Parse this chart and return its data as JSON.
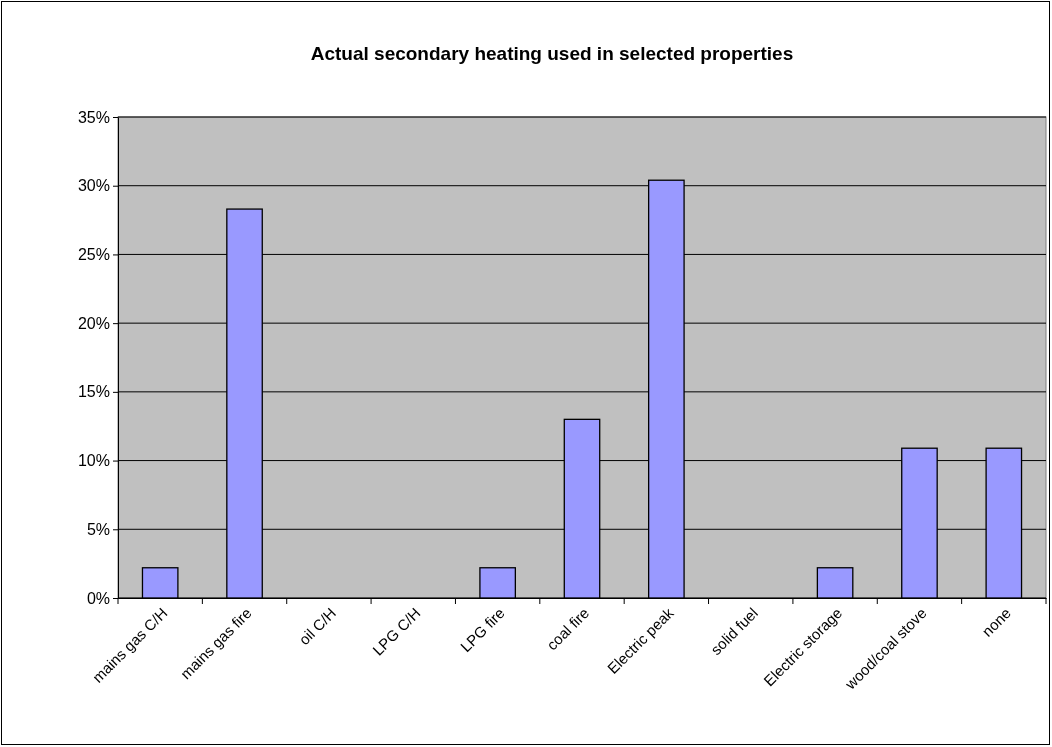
{
  "chart_data": {
    "type": "bar",
    "title": "Actual secondary heating used in selected properties",
    "categories": [
      "mains gas C/H",
      "mains gas fire",
      "oil C/H",
      "LPG C/H",
      "LPG fire",
      "coal fire",
      "Electric peak",
      "solid fuel",
      "Electric storage",
      "wood/coal stove",
      "none"
    ],
    "values": [
      2.2,
      28.3,
      0,
      0,
      2.2,
      13.0,
      30.4,
      0,
      2.2,
      10.9,
      10.9
    ],
    "color": "#9999ff",
    "ylim": [
      0,
      35
    ],
    "yticks": [
      {
        "value": 0,
        "label": "0%"
      },
      {
        "value": 5,
        "label": "5%"
      },
      {
        "value": 10,
        "label": "10%"
      },
      {
        "value": 15,
        "label": "15%"
      },
      {
        "value": 20,
        "label": "20%"
      },
      {
        "value": 25,
        "label": "25%"
      },
      {
        "value": 30,
        "label": "30%"
      },
      {
        "value": 35,
        "label": "35%"
      }
    ],
    "grid": "y"
  }
}
